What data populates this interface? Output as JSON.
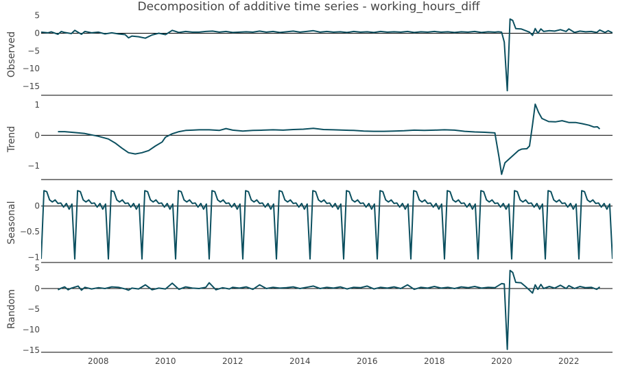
{
  "chart_data": {
    "type": "line",
    "title": "Decomposition of additive time series - working_hours_diff",
    "series_color": "#0b4f5f",
    "x_range": [
      2006.3,
      2023.3
    ],
    "x_ticks": [
      2008,
      2010,
      2012,
      2014,
      2016,
      2018,
      2020,
      2022
    ],
    "x_tick_labels": [
      "2008",
      "2010",
      "2012",
      "2014",
      "2016",
      "2018",
      "2020",
      "2022"
    ],
    "zero_line": true,
    "grid": false,
    "panels": [
      {
        "name": "Observed",
        "ylabel": "Observed",
        "ylim": [
          -17.5,
          5.5
        ],
        "yticks": [
          5,
          0,
          -5,
          -10,
          -15
        ],
        "ytick_labels": [
          "5",
          "0",
          "−5",
          "−10",
          "−15"
        ],
        "points": [
          [
            2006.3,
            0.3
          ],
          [
            2006.5,
            0.1
          ],
          [
            2006.6,
            0.4
          ],
          [
            2006.8,
            -0.3
          ],
          [
            2006.9,
            0.5
          ],
          [
            2007.0,
            0.2
          ],
          [
            2007.2,
            -0.1
          ],
          [
            2007.3,
            0.8
          ],
          [
            2007.5,
            -0.3
          ],
          [
            2007.6,
            0.5
          ],
          [
            2007.8,
            0.1
          ],
          [
            2008.0,
            0.3
          ],
          [
            2008.2,
            -0.2
          ],
          [
            2008.4,
            0.1
          ],
          [
            2008.6,
            -0.2
          ],
          [
            2008.8,
            -0.4
          ],
          [
            2008.9,
            -1.3
          ],
          [
            2009.0,
            -0.8
          ],
          [
            2009.2,
            -1.0
          ],
          [
            2009.4,
            -1.4
          ],
          [
            2009.6,
            -0.5
          ],
          [
            2009.8,
            0.0
          ],
          [
            2010.0,
            -0.4
          ],
          [
            2010.2,
            0.8
          ],
          [
            2010.4,
            0.2
          ],
          [
            2010.6,
            0.5
          ],
          [
            2010.8,
            0.3
          ],
          [
            2011.0,
            0.3
          ],
          [
            2011.2,
            0.5
          ],
          [
            2011.4,
            0.6
          ],
          [
            2011.6,
            0.3
          ],
          [
            2011.8,
            0.5
          ],
          [
            2012.0,
            0.2
          ],
          [
            2012.2,
            0.3
          ],
          [
            2012.4,
            0.4
          ],
          [
            2012.6,
            0.3
          ],
          [
            2012.8,
            0.6
          ],
          [
            2013.0,
            0.3
          ],
          [
            2013.2,
            0.5
          ],
          [
            2013.4,
            0.2
          ],
          [
            2013.6,
            0.4
          ],
          [
            2013.8,
            0.6
          ],
          [
            2014.0,
            0.3
          ],
          [
            2014.2,
            0.5
          ],
          [
            2014.4,
            0.7
          ],
          [
            2014.6,
            0.3
          ],
          [
            2014.8,
            0.5
          ],
          [
            2015.0,
            0.3
          ],
          [
            2015.2,
            0.4
          ],
          [
            2015.4,
            0.2
          ],
          [
            2015.6,
            0.5
          ],
          [
            2015.8,
            0.3
          ],
          [
            2016.0,
            0.4
          ],
          [
            2016.2,
            0.2
          ],
          [
            2016.4,
            0.5
          ],
          [
            2016.6,
            0.3
          ],
          [
            2016.8,
            0.4
          ],
          [
            2017.0,
            0.3
          ],
          [
            2017.2,
            0.5
          ],
          [
            2017.4,
            0.2
          ],
          [
            2017.6,
            0.4
          ],
          [
            2017.8,
            0.3
          ],
          [
            2018.0,
            0.5
          ],
          [
            2018.2,
            0.3
          ],
          [
            2018.4,
            0.4
          ],
          [
            2018.6,
            0.2
          ],
          [
            2018.8,
            0.4
          ],
          [
            2019.0,
            0.3
          ],
          [
            2019.2,
            0.5
          ],
          [
            2019.4,
            0.2
          ],
          [
            2019.6,
            0.4
          ],
          [
            2019.8,
            0.3
          ],
          [
            2019.9,
            0.4
          ],
          [
            2020.0,
            0.3
          ],
          [
            2020.08,
            -2.5
          ],
          [
            2020.17,
            -16.2
          ],
          [
            2020.25,
            4.0
          ],
          [
            2020.33,
            3.6
          ],
          [
            2020.42,
            1.3
          ],
          [
            2020.58,
            1.2
          ],
          [
            2020.75,
            0.6
          ],
          [
            2020.83,
            0.3
          ],
          [
            2020.92,
            -0.6
          ],
          [
            2021.0,
            1.3
          ],
          [
            2021.08,
            0.0
          ],
          [
            2021.17,
            1.2
          ],
          [
            2021.25,
            0.5
          ],
          [
            2021.42,
            0.7
          ],
          [
            2021.58,
            0.6
          ],
          [
            2021.75,
            1.0
          ],
          [
            2021.92,
            0.5
          ],
          [
            2022.0,
            1.2
          ],
          [
            2022.17,
            0.2
          ],
          [
            2022.33,
            0.6
          ],
          [
            2022.5,
            0.4
          ],
          [
            2022.67,
            0.5
          ],
          [
            2022.83,
            0.2
          ],
          [
            2022.92,
            0.9
          ],
          [
            2023.08,
            0.2
          ],
          [
            2023.17,
            0.7
          ],
          [
            2023.3,
            0.1
          ]
        ]
      },
      {
        "name": "Trend",
        "ylabel": "Trend",
        "ylim": [
          -1.45,
          1.2
        ],
        "yticks": [
          1,
          0,
          -1
        ],
        "ytick_labels": [
          "1",
          "0",
          "−1"
        ],
        "points": [
          [
            2006.8,
            0.12
          ],
          [
            2007.0,
            0.12
          ],
          [
            2007.3,
            0.09
          ],
          [
            2007.6,
            0.06
          ],
          [
            2008.0,
            -0.03
          ],
          [
            2008.3,
            -0.12
          ],
          [
            2008.5,
            -0.25
          ],
          [
            2008.7,
            -0.42
          ],
          [
            2008.9,
            -0.57
          ],
          [
            2009.1,
            -0.61
          ],
          [
            2009.3,
            -0.57
          ],
          [
            2009.5,
            -0.5
          ],
          [
            2009.7,
            -0.35
          ],
          [
            2009.9,
            -0.22
          ],
          [
            2010.0,
            -0.06
          ],
          [
            2010.2,
            0.05
          ],
          [
            2010.4,
            0.12
          ],
          [
            2010.6,
            0.16
          ],
          [
            2010.8,
            0.17
          ],
          [
            2011.0,
            0.18
          ],
          [
            2011.3,
            0.18
          ],
          [
            2011.6,
            0.16
          ],
          [
            2011.8,
            0.22
          ],
          [
            2012.0,
            0.17
          ],
          [
            2012.3,
            0.14
          ],
          [
            2012.6,
            0.16
          ],
          [
            2012.9,
            0.17
          ],
          [
            2013.2,
            0.18
          ],
          [
            2013.5,
            0.17
          ],
          [
            2013.8,
            0.19
          ],
          [
            2014.1,
            0.2
          ],
          [
            2014.4,
            0.23
          ],
          [
            2014.7,
            0.19
          ],
          [
            2015.0,
            0.18
          ],
          [
            2015.3,
            0.17
          ],
          [
            2015.6,
            0.16
          ],
          [
            2015.9,
            0.14
          ],
          [
            2016.2,
            0.13
          ],
          [
            2016.5,
            0.13
          ],
          [
            2016.8,
            0.14
          ],
          [
            2017.1,
            0.15
          ],
          [
            2017.4,
            0.17
          ],
          [
            2017.7,
            0.16
          ],
          [
            2018.0,
            0.17
          ],
          [
            2018.3,
            0.18
          ],
          [
            2018.6,
            0.17
          ],
          [
            2018.9,
            0.13
          ],
          [
            2019.2,
            0.11
          ],
          [
            2019.5,
            0.1
          ],
          [
            2019.8,
            0.08
          ],
          [
            2019.92,
            -0.7
          ],
          [
            2020.0,
            -1.28
          ],
          [
            2020.1,
            -0.9
          ],
          [
            2020.3,
            -0.7
          ],
          [
            2020.5,
            -0.5
          ],
          [
            2020.6,
            -0.45
          ],
          [
            2020.75,
            -0.44
          ],
          [
            2020.83,
            -0.35
          ],
          [
            2020.92,
            0.35
          ],
          [
            2021.0,
            1.02
          ],
          [
            2021.1,
            0.75
          ],
          [
            2021.2,
            0.55
          ],
          [
            2021.4,
            0.45
          ],
          [
            2021.6,
            0.44
          ],
          [
            2021.8,
            0.48
          ],
          [
            2022.0,
            0.42
          ],
          [
            2022.2,
            0.42
          ],
          [
            2022.4,
            0.38
          ],
          [
            2022.6,
            0.33
          ],
          [
            2022.75,
            0.27
          ],
          [
            2022.85,
            0.28
          ],
          [
            2022.92,
            0.21
          ]
        ]
      },
      {
        "name": "Seasonal",
        "ylabel": "Seasonal",
        "ylim": [
          -1.1,
          0.45
        ],
        "yticks": [
          0,
          -0.5,
          -1
        ],
        "ytick_labels": [
          "0",
          "−0.5",
          "−1"
        ],
        "pattern": [
          -1.03,
          0.3,
          0.28,
          0.12,
          0.08,
          0.12,
          0.05,
          0.06,
          -0.02,
          0.05,
          -0.06,
          0.04
        ],
        "x_start": 2006.3,
        "x_end": 2023.3
      },
      {
        "name": "Random",
        "ylabel": "Random",
        "ylim": [
          -15.5,
          5.5
        ],
        "yticks": [
          5,
          0,
          -5,
          -10,
          -15
        ],
        "ytick_labels": [
          "5",
          "0",
          "−5",
          "−10",
          "−15"
        ],
        "points": [
          [
            2006.8,
            -0.3
          ],
          [
            2006.9,
            0.1
          ],
          [
            2007.0,
            0.4
          ],
          [
            2007.1,
            -0.3
          ],
          [
            2007.2,
            0.1
          ],
          [
            2007.4,
            0.6
          ],
          [
            2007.5,
            -0.4
          ],
          [
            2007.6,
            0.3
          ],
          [
            2007.8,
            -0.1
          ],
          [
            2008.0,
            0.2
          ],
          [
            2008.2,
            0.0
          ],
          [
            2008.4,
            0.4
          ],
          [
            2008.6,
            0.3
          ],
          [
            2008.8,
            -0.1
          ],
          [
            2008.9,
            -0.4
          ],
          [
            2009.0,
            0.1
          ],
          [
            2009.2,
            -0.1
          ],
          [
            2009.4,
            0.9
          ],
          [
            2009.6,
            -0.3
          ],
          [
            2009.8,
            0.1
          ],
          [
            2010.0,
            -0.1
          ],
          [
            2010.2,
            1.3
          ],
          [
            2010.4,
            -0.2
          ],
          [
            2010.6,
            0.4
          ],
          [
            2010.8,
            0.1
          ],
          [
            2011.0,
            0.0
          ],
          [
            2011.2,
            0.3
          ],
          [
            2011.3,
            1.4
          ],
          [
            2011.5,
            -0.3
          ],
          [
            2011.7,
            0.2
          ],
          [
            2011.9,
            -0.1
          ],
          [
            2012.0,
            0.3
          ],
          [
            2012.2,
            0.1
          ],
          [
            2012.4,
            0.4
          ],
          [
            2012.6,
            -0.2
          ],
          [
            2012.8,
            0.9
          ],
          [
            2013.0,
            0.0
          ],
          [
            2013.2,
            0.3
          ],
          [
            2013.4,
            0.1
          ],
          [
            2013.6,
            0.2
          ],
          [
            2013.8,
            0.4
          ],
          [
            2014.0,
            0.0
          ],
          [
            2014.2,
            0.3
          ],
          [
            2014.4,
            0.6
          ],
          [
            2014.6,
            0.0
          ],
          [
            2014.8,
            0.3
          ],
          [
            2015.0,
            0.1
          ],
          [
            2015.2,
            0.4
          ],
          [
            2015.4,
            -0.1
          ],
          [
            2015.6,
            0.3
          ],
          [
            2015.8,
            0.2
          ],
          [
            2016.0,
            0.6
          ],
          [
            2016.2,
            -0.1
          ],
          [
            2016.4,
            0.3
          ],
          [
            2016.6,
            0.1
          ],
          [
            2016.8,
            0.4
          ],
          [
            2017.0,
            0.0
          ],
          [
            2017.2,
            0.9
          ],
          [
            2017.4,
            -0.2
          ],
          [
            2017.6,
            0.3
          ],
          [
            2017.8,
            0.1
          ],
          [
            2018.0,
            0.5
          ],
          [
            2018.2,
            0.1
          ],
          [
            2018.4,
            0.3
          ],
          [
            2018.6,
            0.0
          ],
          [
            2018.8,
            0.4
          ],
          [
            2019.0,
            0.2
          ],
          [
            2019.2,
            0.5
          ],
          [
            2019.4,
            0.1
          ],
          [
            2019.6,
            0.3
          ],
          [
            2019.8,
            0.2
          ],
          [
            2020.0,
            1.2
          ],
          [
            2020.08,
            1.1
          ],
          [
            2020.17,
            -14.8
          ],
          [
            2020.25,
            4.4
          ],
          [
            2020.33,
            3.9
          ],
          [
            2020.42,
            1.5
          ],
          [
            2020.58,
            1.4
          ],
          [
            2020.75,
            0.2
          ],
          [
            2020.83,
            -0.4
          ],
          [
            2020.92,
            -1.1
          ],
          [
            2021.0,
            0.9
          ],
          [
            2021.08,
            -0.2
          ],
          [
            2021.17,
            1.0
          ],
          [
            2021.25,
            0.0
          ],
          [
            2021.42,
            0.5
          ],
          [
            2021.58,
            0.1
          ],
          [
            2021.75,
            0.8
          ],
          [
            2021.92,
            0.0
          ],
          [
            2022.0,
            0.7
          ],
          [
            2022.17,
            0.0
          ],
          [
            2022.33,
            0.5
          ],
          [
            2022.5,
            0.2
          ],
          [
            2022.67,
            0.3
          ],
          [
            2022.83,
            -0.2
          ],
          [
            2022.92,
            0.4
          ]
        ]
      }
    ]
  }
}
